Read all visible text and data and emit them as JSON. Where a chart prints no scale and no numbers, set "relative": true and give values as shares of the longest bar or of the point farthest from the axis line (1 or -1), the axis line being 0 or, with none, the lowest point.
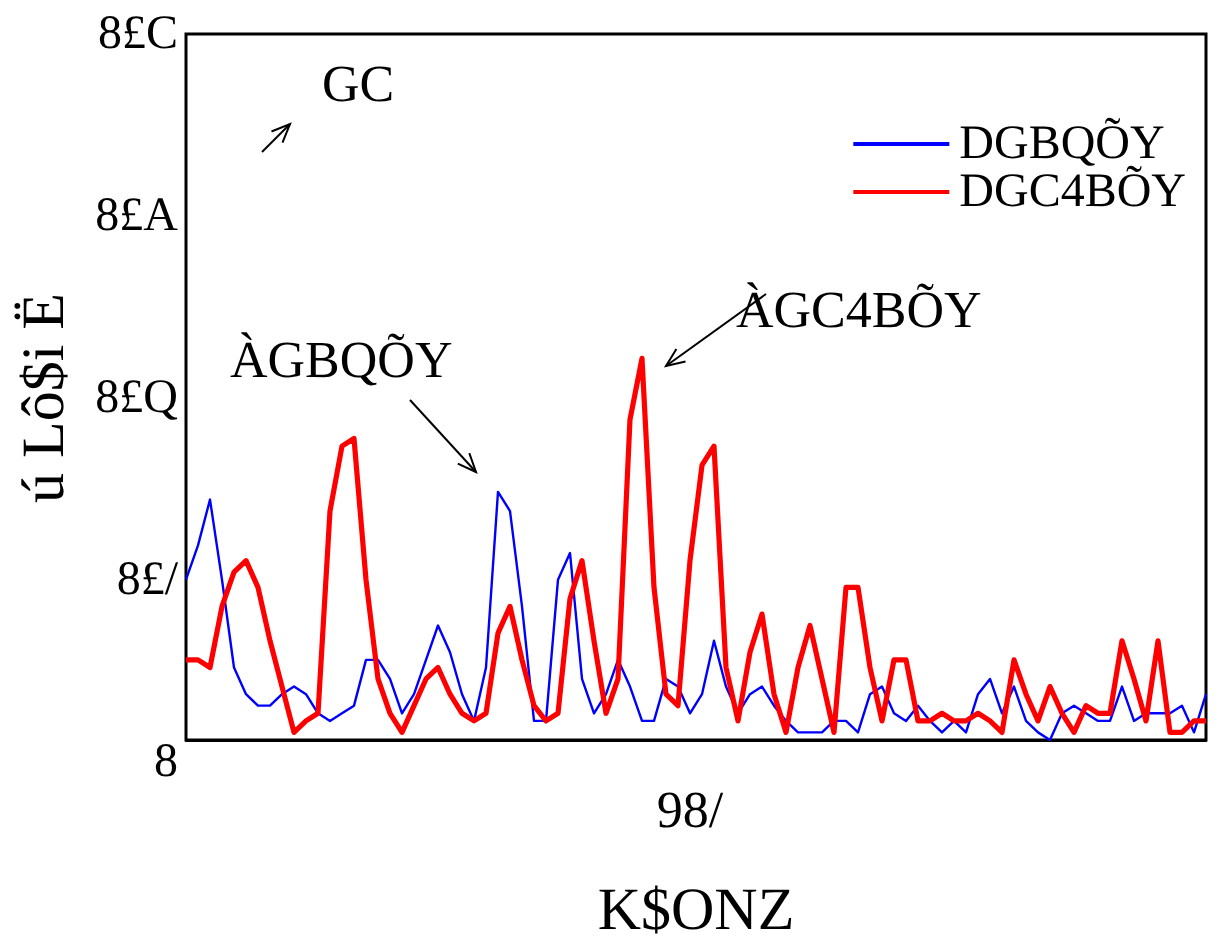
{
  "chart_data": {
    "type": "line",
    "relative": true,
    "xlabel": "K$ONZ",
    "ylabel": "ú Lô$i Ë",
    "legend": "top right",
    "categories": [
      null,
      null,
      null,
      null,
      null,
      null,
      null,
      null,
      null,
      null,
      null,
      null,
      null,
      null,
      null,
      null,
      null,
      null,
      null,
      null,
      null,
      null,
      null,
      null,
      null,
      null,
      null,
      null,
      null,
      null,
      null,
      null,
      null,
      null,
      null,
      null,
      null,
      null,
      null,
      null,
      null,
      null,
      null,
      null,
      null,
      null,
      null,
      null,
      null,
      null,
      null,
      null,
      null,
      null,
      null,
      null,
      null,
      null,
      null,
      null,
      null,
      null,
      null,
      null,
      null,
      null,
      null,
      null,
      null,
      null,
      null,
      null,
      null,
      null,
      null,
      null,
      null,
      null,
      null,
      null,
      null,
      null,
      null,
      null,
      null,
      null
    ],
    "series": [
      {
        "name": "DGBQÕY",
        "color": "#0000ff",
        "values": [
          0.42,
          0.51,
          0.63,
          0.42,
          0.19,
          0.12,
          0.09,
          0.09,
          0.12,
          0.14,
          0.12,
          0.07,
          0.05,
          0.07,
          0.09,
          0.21,
          0.21,
          0.16,
          0.07,
          0.12,
          0.21,
          0.3,
          0.23,
          0.12,
          0.05,
          0.19,
          0.65,
          0.6,
          0.35,
          0.05,
          0.05,
          0.42,
          0.49,
          0.16,
          0.07,
          0.12,
          0.21,
          0.14,
          0.05,
          0.05,
          0.16,
          0.14,
          0.07,
          0.12,
          0.26,
          0.14,
          0.07,
          0.12,
          0.14,
          0.09,
          0.05,
          0.02,
          0.02,
          0.02,
          0.05,
          0.05,
          0.02,
          0.12,
          0.14,
          0.07,
          0.05,
          0.09,
          0.05,
          0.02,
          0.05,
          0.02,
          0.12,
          0.16,
          0.07,
          0.14,
          0.05,
          0.02,
          0,
          0.07,
          0.09,
          0.07,
          0.05,
          0.05,
          0.14,
          0.05,
          0.07,
          0.07,
          0.07,
          0.09,
          0.02,
          0.12
        ]
      },
      {
        "name": "DGC4BÕY",
        "color": "#ff0000",
        "values": [
          0.21,
          0.21,
          0.19,
          0.35,
          0.44,
          0.47,
          0.4,
          0.26,
          0.14,
          0.02,
          0.05,
          0.07,
          0.6,
          0.77,
          0.79,
          0.42,
          0.16,
          0.07,
          0.02,
          0.09,
          0.16,
          0.19,
          0.12,
          0.07,
          0.05,
          0.07,
          0.28,
          0.35,
          0.21,
          0.09,
          0.05,
          0.07,
          0.37,
          0.47,
          0.26,
          0.07,
          0.16,
          0.84,
          1,
          0.4,
          0.12,
          0.09,
          0.47,
          0.72,
          0.77,
          0.19,
          0.05,
          0.23,
          0.33,
          0.12,
          0.02,
          0.19,
          0.3,
          0.16,
          0.02,
          0.4,
          0.4,
          0.19,
          0.05,
          0.21,
          0.21,
          0.05,
          0.05,
          0.07,
          0.05,
          0.05,
          0.07,
          0.05,
          0.02,
          0.21,
          0.12,
          0.05,
          0.14,
          0.07,
          0.02,
          0.09,
          0.07,
          0.07,
          0.26,
          0.16,
          0.05,
          0.26,
          0.02,
          0.02,
          0.05,
          0.05
        ]
      }
    ],
    "annotations": [
      "GC",
      "ÀGBQÕY",
      "ÀGC4BÕY",
      "98/",
      "8",
      "8£/",
      "8£Q",
      "8£A",
      "8£C"
    ]
  }
}
